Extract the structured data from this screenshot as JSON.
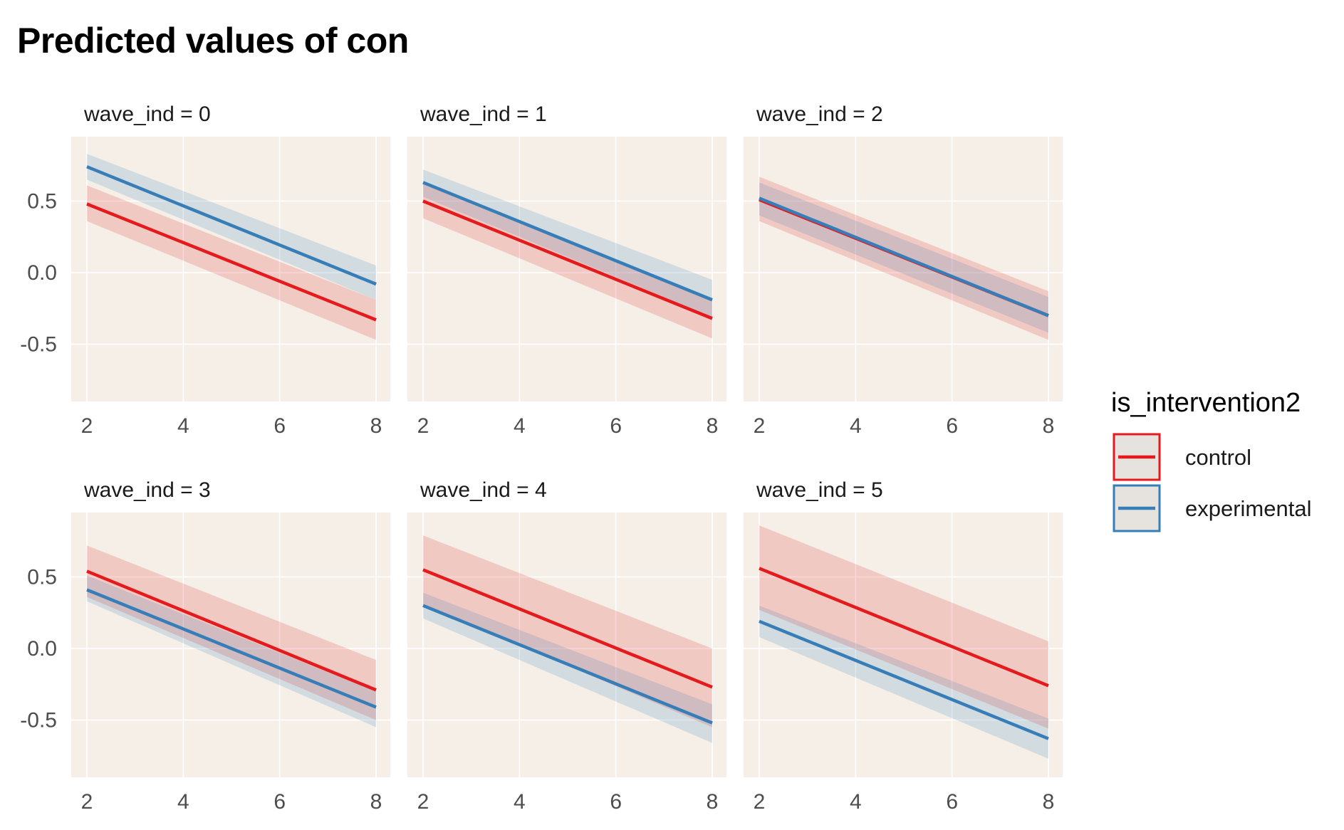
{
  "title": "Predicted values of con",
  "chart_data": {
    "type": "line",
    "title": "Predicted values of con",
    "xlabel": "",
    "ylabel": "",
    "xlim": [
      2,
      8
    ],
    "ylim": [
      -0.9,
      0.95
    ],
    "x_ticks": [
      2,
      4,
      6,
      8
    ],
    "y_ticks": [
      0.5,
      0.0,
      -0.5
    ],
    "y_tick_labels": [
      "0.5",
      "0.0",
      "-0.5"
    ],
    "grid": true,
    "facet_var": "wave_ind",
    "legend": {
      "title": "is_intervention2",
      "placement": "right",
      "items": [
        "control",
        "experimental"
      ]
    },
    "colors": {
      "control": "#E41A1C",
      "experimental": "#377EB8",
      "panel_bg": "#F5EFE8",
      "grid": "#FFFFFF"
    },
    "panels": [
      {
        "label": "wave_ind = 0",
        "series": [
          {
            "name": "control",
            "x": [
              2,
              8
            ],
            "y": [
              0.48,
              -0.33
            ],
            "lower": [
              0.36,
              -0.47
            ],
            "upper": [
              0.61,
              -0.19
            ]
          },
          {
            "name": "experimental",
            "x": [
              2,
              8
            ],
            "y": [
              0.74,
              -0.08
            ],
            "lower": [
              0.65,
              -0.19
            ],
            "upper": [
              0.83,
              0.05
            ]
          }
        ]
      },
      {
        "label": "wave_ind = 1",
        "series": [
          {
            "name": "control",
            "x": [
              2,
              8
            ],
            "y": [
              0.5,
              -0.32
            ],
            "lower": [
              0.38,
              -0.46
            ],
            "upper": [
              0.62,
              -0.18
            ]
          },
          {
            "name": "experimental",
            "x": [
              2,
              8
            ],
            "y": [
              0.63,
              -0.19
            ],
            "lower": [
              0.53,
              -0.31
            ],
            "upper": [
              0.72,
              -0.05
            ]
          }
        ]
      },
      {
        "label": "wave_ind = 2",
        "series": [
          {
            "name": "control",
            "x": [
              2,
              8
            ],
            "y": [
              0.51,
              -0.3
            ],
            "lower": [
              0.36,
              -0.47
            ],
            "upper": [
              0.67,
              -0.13
            ]
          },
          {
            "name": "experimental",
            "x": [
              2,
              8
            ],
            "y": [
              0.52,
              -0.3
            ],
            "lower": [
              0.4,
              -0.42
            ],
            "upper": [
              0.63,
              -0.17
            ]
          }
        ]
      },
      {
        "label": "wave_ind = 3",
        "series": [
          {
            "name": "control",
            "x": [
              2,
              8
            ],
            "y": [
              0.54,
              -0.29
            ],
            "lower": [
              0.36,
              -0.5
            ],
            "upper": [
              0.72,
              -0.08
            ]
          },
          {
            "name": "experimental",
            "x": [
              2,
              8
            ],
            "y": [
              0.41,
              -0.41
            ],
            "lower": [
              0.33,
              -0.55
            ],
            "upper": [
              0.51,
              -0.3
            ]
          }
        ]
      },
      {
        "label": "wave_ind = 4",
        "series": [
          {
            "name": "control",
            "x": [
              2,
              8
            ],
            "y": [
              0.55,
              -0.27
            ],
            "lower": [
              0.31,
              -0.55
            ],
            "upper": [
              0.79,
              0.0
            ]
          },
          {
            "name": "experimental",
            "x": [
              2,
              8
            ],
            "y": [
              0.3,
              -0.52
            ],
            "lower": [
              0.21,
              -0.66
            ],
            "upper": [
              0.39,
              -0.39
            ]
          }
        ]
      },
      {
        "label": "wave_ind = 5",
        "series": [
          {
            "name": "control",
            "x": [
              2,
              8
            ],
            "y": [
              0.56,
              -0.26
            ],
            "lower": [
              0.27,
              -0.56
            ],
            "upper": [
              0.86,
              0.05
            ]
          },
          {
            "name": "experimental",
            "x": [
              2,
              8
            ],
            "y": [
              0.19,
              -0.63
            ],
            "lower": [
              0.08,
              -0.77
            ],
            "upper": [
              0.3,
              -0.49
            ]
          }
        ]
      }
    ]
  }
}
